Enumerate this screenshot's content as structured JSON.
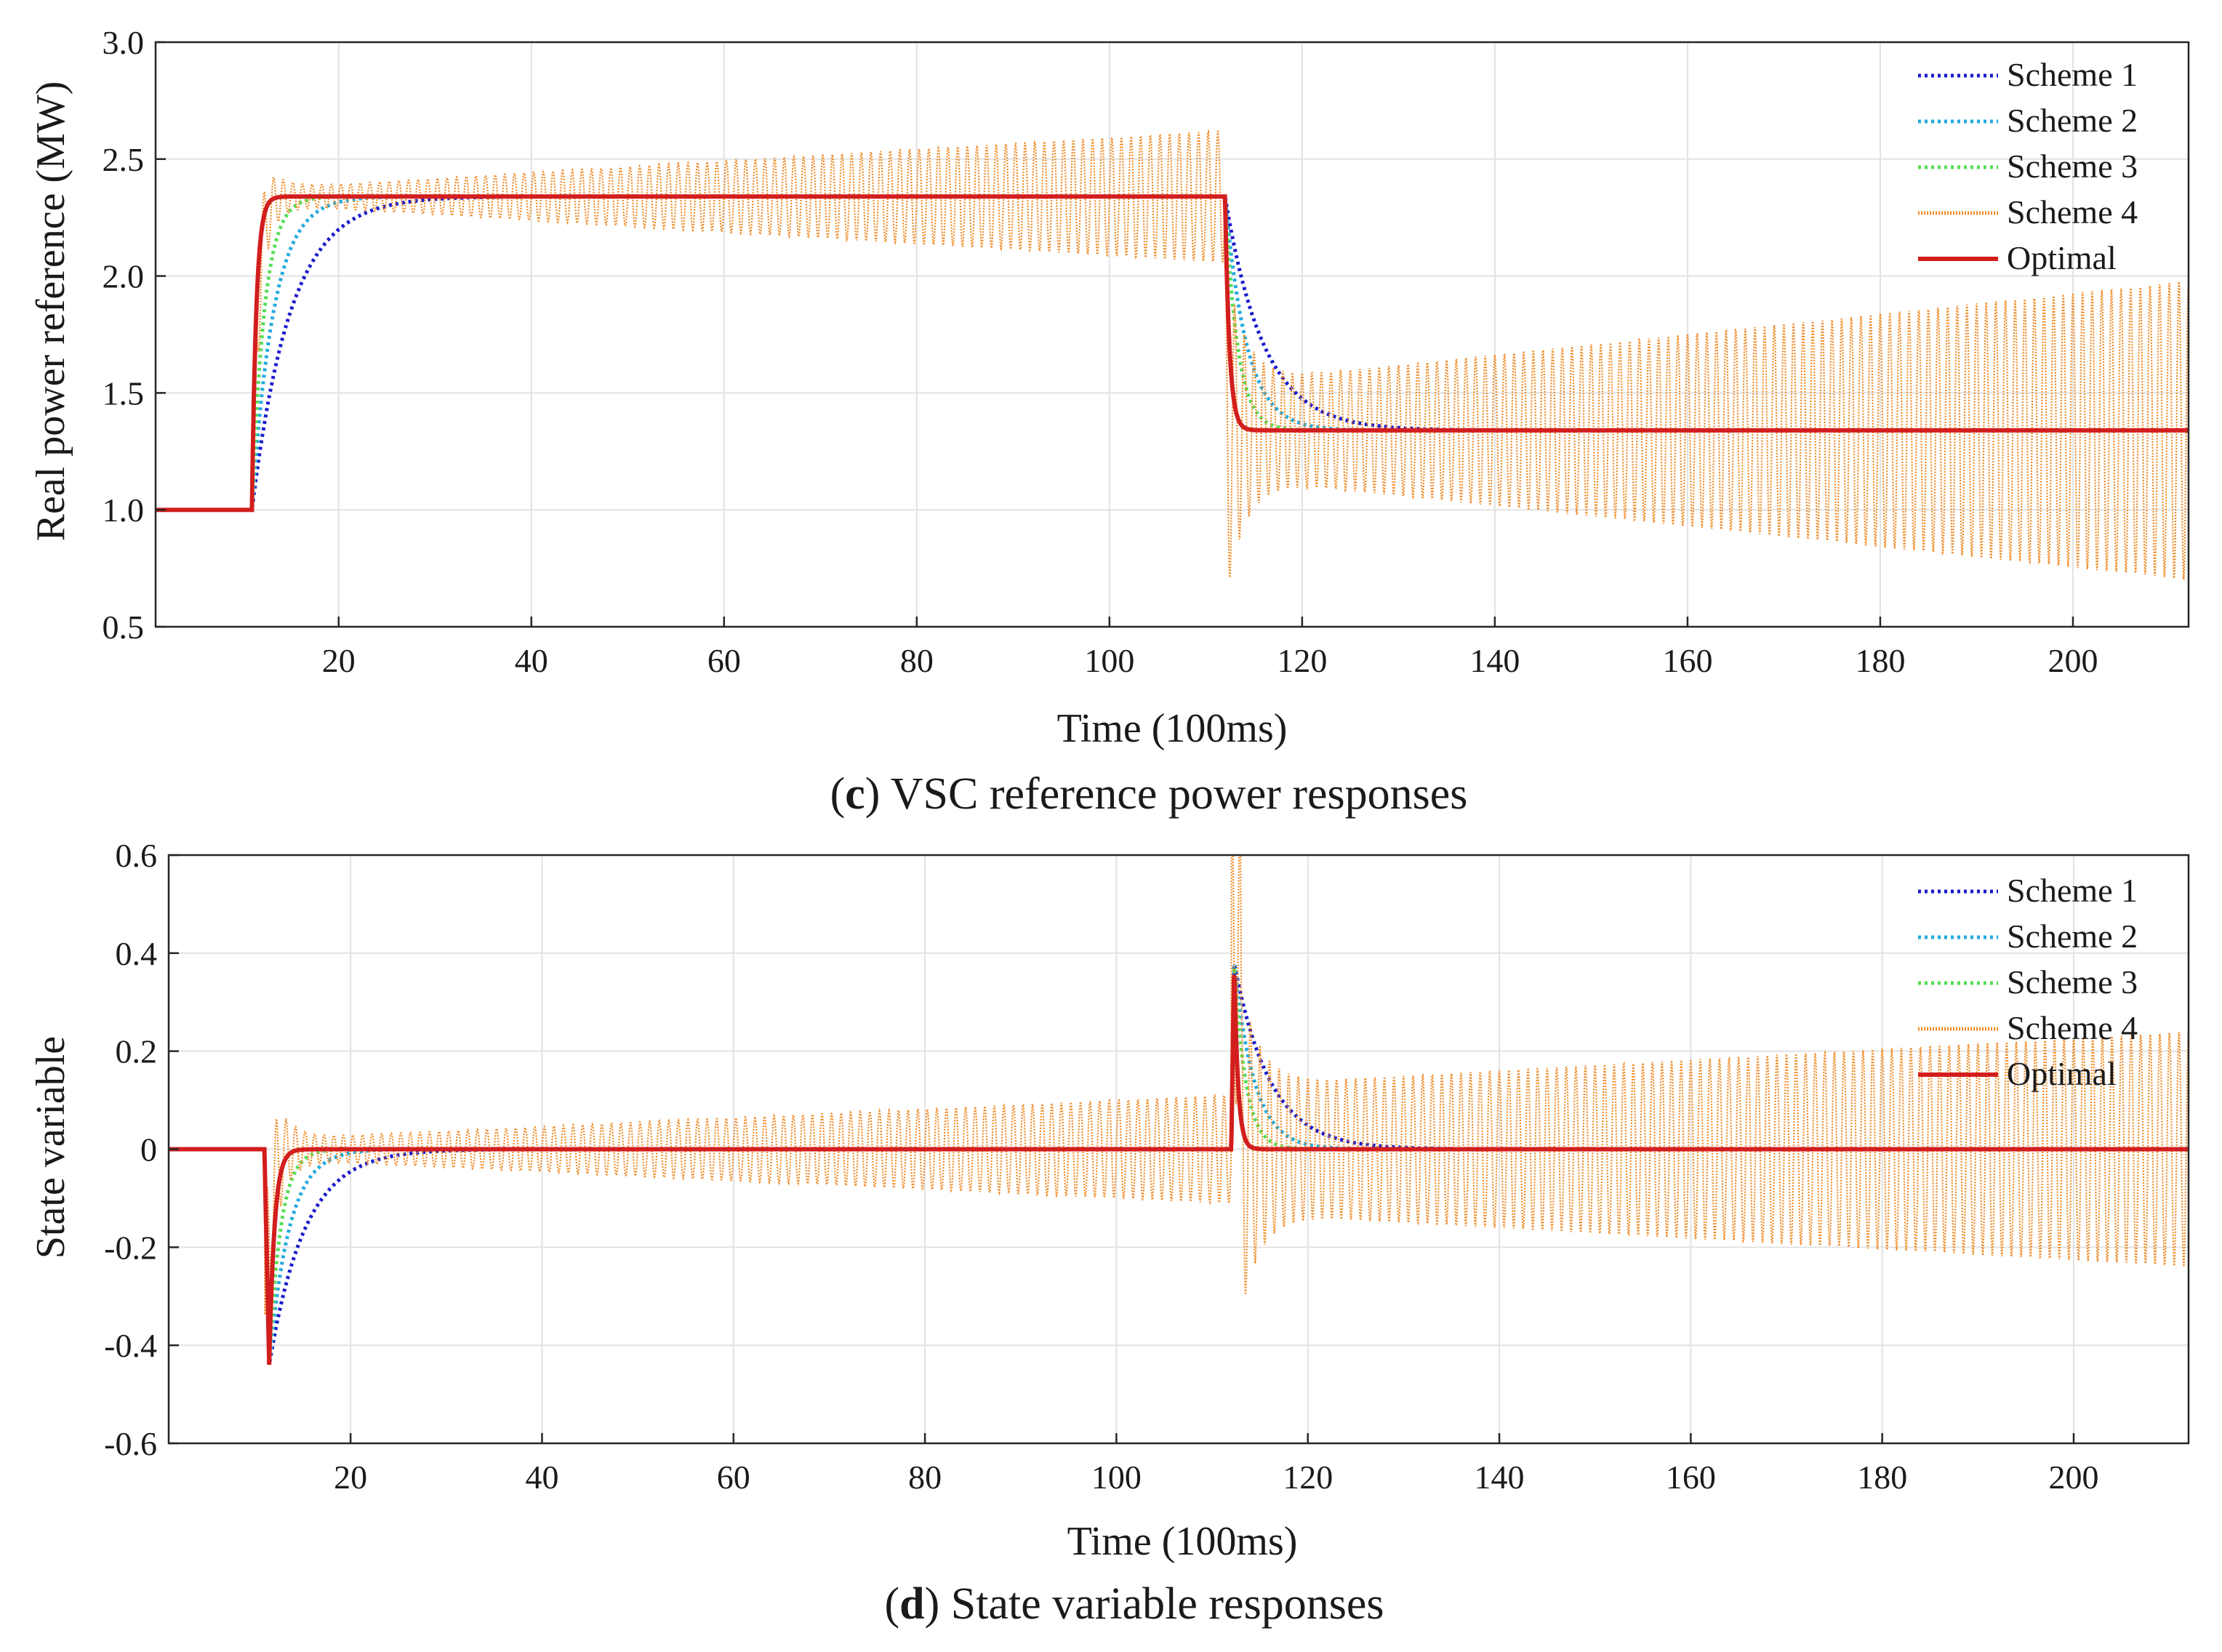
{
  "chart_data": [
    {
      "type": "line",
      "panel_id": "c",
      "caption_letter": "c",
      "caption_text": ") VSC reference power responses",
      "caption_open": "(",
      "xlabel": "Time (100ms)",
      "ylabel": "Real power reference (MW)",
      "xlim": [
        1,
        212
      ],
      "ylim": [
        0.5,
        3.0
      ],
      "xticks": [
        20,
        40,
        60,
        80,
        100,
        120,
        140,
        160,
        180,
        200
      ],
      "xtick_labels": [
        "20",
        "40",
        "60",
        "80",
        "100",
        "120",
        "140",
        "160",
        "180",
        "200"
      ],
      "yticks": [
        0.5,
        1.0,
        1.5,
        2.0,
        2.5,
        3.0
      ],
      "ytick_labels": [
        "0.5",
        "1.0",
        "1.5",
        "2.0",
        "2.5",
        "3.0"
      ],
      "grid": true,
      "legend_position": "top-right",
      "legend": [
        "Scheme 1",
        "Scheme 2",
        "Scheme 3",
        "Scheme 4",
        "Optimal"
      ],
      "model": {
        "base": 1.0,
        "step1_time": 11,
        "step1_level": 2.34,
        "step2_time": 112,
        "step2_level": 1.34,
        "scheme4_osc_start": 0.03,
        "scheme4_osc_growth": 0.0025,
        "scheme4_osc2_start": 0.2,
        "scheme4_osc2_growth": 0.0044
      },
      "series": [
        {
          "name": "Scheme 1",
          "color": "#1a1acc",
          "style": "dotted",
          "tau": 2.5
        },
        {
          "name": "Scheme 2",
          "color": "#22aadd",
          "style": "dotted",
          "tau": 1.4
        },
        {
          "name": "Scheme 3",
          "color": "#55dd55",
          "style": "dotted",
          "tau": 0.8
        },
        {
          "name": "Scheme 4",
          "color": "#f08a24",
          "style": "dotted-fine",
          "tau": 0
        },
        {
          "name": "Optimal",
          "color": "#d21e1e",
          "style": "solid",
          "tau": 0
        }
      ]
    },
    {
      "type": "line",
      "panel_id": "d",
      "caption_letter": "d",
      "caption_text": ") State variable responses",
      "caption_open": "(",
      "xlabel": "Time (100ms)",
      "ylabel": "State variable",
      "xlim": [
        1,
        212
      ],
      "ylim": [
        -0.6,
        0.6
      ],
      "xticks": [
        20,
        40,
        60,
        80,
        100,
        120,
        140,
        160,
        180,
        200
      ],
      "xtick_labels": [
        "20",
        "40",
        "60",
        "80",
        "100",
        "120",
        "140",
        "160",
        "180",
        "200"
      ],
      "yticks": [
        -0.6,
        -0.4,
        -0.2,
        0,
        0.2,
        0.4,
        0.6
      ],
      "ytick_labels": [
        "-0.6",
        "-0.4",
        "-0.2",
        "0",
        "0.2",
        "0.4",
        "0.6"
      ],
      "grid": true,
      "legend_position": "top-right",
      "legend": [
        "Scheme 1",
        "Scheme 2",
        "Scheme 3",
        "Scheme 4",
        "Optimal"
      ],
      "model": {
        "base": 0,
        "step1_time": 11,
        "step1_level": -0.44,
        "step2_time": 112,
        "step2_level": 0.38,
        "scheme4_osc_start": 0.02,
        "scheme4_osc_growth": 0.0009,
        "scheme4_osc2_start": 0.13,
        "scheme4_osc2_growth": 0.0011
      },
      "series": [
        {
          "name": "Scheme 1",
          "color": "#1a1acc",
          "style": "dotted",
          "tau": 2.5
        },
        {
          "name": "Scheme 2",
          "color": "#22aadd",
          "style": "dotted",
          "tau": 1.4
        },
        {
          "name": "Scheme 3",
          "color": "#55dd55",
          "style": "dotted",
          "tau": 0.8
        },
        {
          "name": "Scheme 4",
          "color": "#f08a24",
          "style": "dotted-fine",
          "tau": 0
        },
        {
          "name": "Optimal",
          "color": "#d21e1e",
          "style": "solid",
          "tau": 0
        }
      ]
    }
  ]
}
